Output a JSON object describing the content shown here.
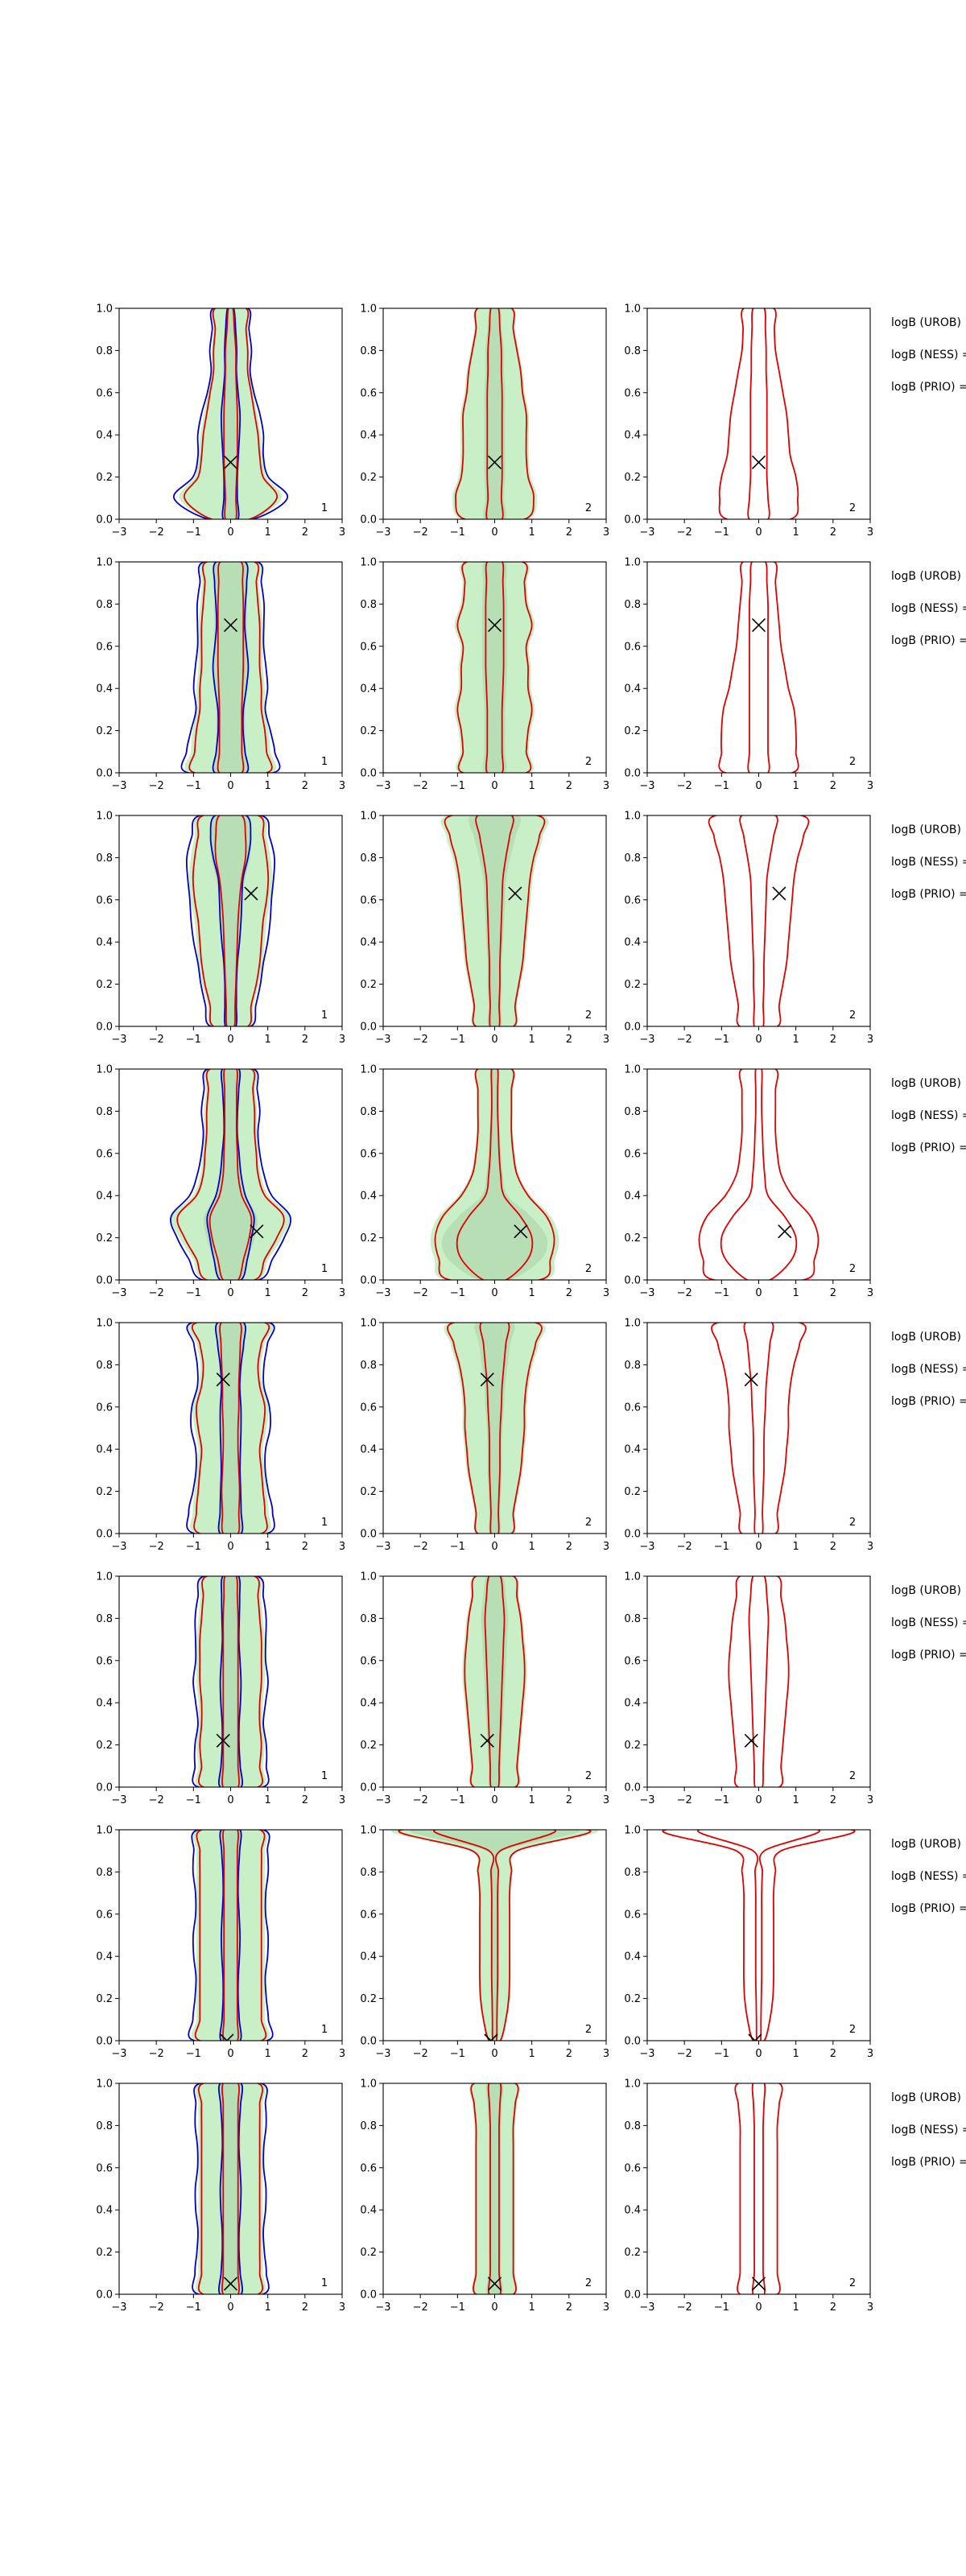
{
  "chart_data": {
    "type": "contour-grid",
    "layout": {
      "rows": 8,
      "cols": 3,
      "side_annotations": true
    },
    "axes": {
      "xlim": [
        -3,
        3
      ],
      "ylim": [
        0,
        1
      ],
      "xticks": [
        -3,
        -2,
        -1,
        0,
        1,
        2,
        3
      ],
      "yticks": [
        0.0,
        0.2,
        0.4,
        0.6,
        0.8,
        1.0
      ],
      "xtick_labels": [
        "−3",
        "−2",
        "−1",
        "0",
        "1",
        "2",
        "3"
      ],
      "ytick_labels": [
        "0.0",
        "0.2",
        "0.4",
        "0.6",
        "0.8",
        "1.0"
      ]
    },
    "colors": {
      "fill_outer": "#c8efc6",
      "fill_inner": "#b4d9b0",
      "red": "#e00000",
      "blue": "#0000cc",
      "marker": "#000000"
    },
    "panel_labels": [
      "1",
      "2",
      "2"
    ],
    "side_labels": [
      "logB (UROB)",
      "logB (NESS) =",
      "logB (PRIO) ="
    ],
    "rows": [
      {
        "marker": [
          0.0,
          0.27
        ],
        "outer_w": [
          0.55,
          1.35,
          0.95,
          0.85,
          0.8,
          0.7,
          0.6,
          0.5,
          0.5,
          0.45,
          0.45
        ],
        "inner_w": [
          0.14,
          0.14,
          0.16,
          0.18,
          0.18,
          0.18,
          0.16,
          0.14,
          0.14,
          0.1,
          0.06
        ],
        "c2_outer": [
          0.8,
          1.05,
          0.9,
          0.85,
          0.85,
          0.85,
          0.75,
          0.7,
          0.6,
          0.5,
          0.45
        ],
        "c2_inner": [
          0.2,
          0.18,
          0.2,
          0.2,
          0.2,
          0.2,
          0.2,
          0.18,
          0.18,
          0.14,
          0.1
        ],
        "c3_outer": [
          0.85,
          1.05,
          1.0,
          0.85,
          0.8,
          0.75,
          0.65,
          0.55,
          0.45,
          0.42,
          0.4
        ],
        "c3_inner": [
          0.25,
          0.25,
          0.22,
          0.22,
          0.22,
          0.22,
          0.22,
          0.2,
          0.2,
          0.18,
          0.15
        ]
      },
      {
        "marker": [
          0.0,
          0.7
        ],
        "outer_w": [
          1.05,
          1.05,
          1.0,
          0.9,
          0.9,
          0.85,
          0.85,
          0.85,
          0.8,
          0.75,
          0.7
        ],
        "inner_w": [
          0.3,
          0.3,
          0.3,
          0.3,
          0.32,
          0.34,
          0.34,
          0.34,
          0.34,
          0.32,
          0.28
        ],
        "c2_outer": [
          0.85,
          0.85,
          0.9,
          1.0,
          0.9,
          0.9,
          0.85,
          1.0,
          0.85,
          0.8,
          0.75
        ],
        "c2_inner": [
          0.2,
          0.2,
          0.2,
          0.2,
          0.22,
          0.24,
          0.24,
          0.24,
          0.24,
          0.22,
          0.2
        ],
        "c3_outer": [
          0.9,
          1.0,
          1.0,
          0.95,
          0.8,
          0.7,
          0.6,
          0.55,
          0.5,
          0.45,
          0.42
        ],
        "c3_inner": [
          0.25,
          0.25,
          0.25,
          0.25,
          0.25,
          0.25,
          0.25,
          0.25,
          0.25,
          0.22,
          0.18
        ]
      },
      {
        "marker": [
          0.55,
          0.63
        ],
        "outer_w": [
          0.5,
          0.6,
          0.75,
          0.85,
          0.9,
          0.95,
          1.05,
          1.1,
          1.05,
          0.95,
          0.8
        ],
        "inner_w": [
          0.1,
          0.12,
          0.14,
          0.16,
          0.18,
          0.2,
          0.24,
          0.3,
          0.4,
          0.4,
          0.3
        ],
        "c2_outer": [
          0.5,
          0.55,
          0.65,
          0.75,
          0.8,
          0.85,
          0.9,
          0.95,
          1.05,
          1.2,
          1.15
        ],
        "c2_inner": [
          0.12,
          0.12,
          0.14,
          0.14,
          0.16,
          0.18,
          0.2,
          0.22,
          0.3,
          0.4,
          0.45
        ],
        "c3_outer": [
          0.5,
          0.55,
          0.65,
          0.75,
          0.8,
          0.85,
          0.9,
          0.95,
          1.05,
          1.2,
          1.15
        ],
        "c3_inner": [
          0.12,
          0.12,
          0.14,
          0.14,
          0.16,
          0.18,
          0.2,
          0.22,
          0.3,
          0.4,
          0.45
        ]
      },
      {
        "marker": [
          0.7,
          0.23
        ],
        "outer_w": [
          0.7,
          1.0,
          1.35,
          1.55,
          1.0,
          0.8,
          0.75,
          0.7,
          0.7,
          0.65,
          0.6
        ],
        "inner_w": [
          0.2,
          0.35,
          0.5,
          0.55,
          0.3,
          0.2,
          0.18,
          0.16,
          0.16,
          0.16,
          0.16
        ],
        "c2_outer": [
          1.2,
          1.5,
          1.6,
          1.4,
          0.9,
          0.6,
          0.5,
          0.45,
          0.45,
          0.45,
          0.45
        ],
        "c2_inner": [
          0.3,
          0.9,
          1.0,
          0.7,
          0.25,
          0.16,
          0.12,
          0.1,
          0.08,
          0.08,
          0.08
        ],
        "c3_outer": [
          1.2,
          1.5,
          1.6,
          1.4,
          0.9,
          0.6,
          0.5,
          0.45,
          0.45,
          0.45,
          0.45
        ],
        "c3_inner": [
          0.3,
          0.9,
          1.0,
          0.7,
          0.25,
          0.16,
          0.12,
          0.1,
          0.08,
          0.08,
          0.08
        ]
      },
      {
        "marker": [
          -0.2,
          0.73
        ],
        "outer_w": [
          0.9,
          1.0,
          0.95,
          0.9,
          0.85,
          0.95,
          1.0,
          0.85,
          0.8,
          0.9,
          1.0
        ],
        "inner_w": [
          0.2,
          0.22,
          0.24,
          0.22,
          0.2,
          0.2,
          0.22,
          0.22,
          0.24,
          0.26,
          0.25
        ],
        "c2_outer": [
          0.45,
          0.5,
          0.6,
          0.7,
          0.75,
          0.8,
          0.8,
          0.85,
          0.95,
          1.1,
          1.1
        ],
        "c2_inner": [
          0.1,
          0.1,
          0.12,
          0.14,
          0.14,
          0.15,
          0.18,
          0.2,
          0.25,
          0.3,
          0.35
        ],
        "c3_outer": [
          0.45,
          0.5,
          0.6,
          0.7,
          0.75,
          0.8,
          0.8,
          0.85,
          0.95,
          1.1,
          1.1
        ],
        "c3_inner": [
          0.1,
          0.1,
          0.12,
          0.14,
          0.14,
          0.15,
          0.18,
          0.2,
          0.25,
          0.3,
          0.35
        ]
      },
      {
        "marker": [
          -0.2,
          0.22
        ],
        "outer_w": [
          0.8,
          0.85,
          0.9,
          0.85,
          0.85,
          0.9,
          0.9,
          0.9,
          0.85,
          0.8,
          0.7
        ],
        "inner_w": [
          0.2,
          0.2,
          0.2,
          0.2,
          0.2,
          0.2,
          0.2,
          0.2,
          0.2,
          0.18,
          0.15
        ],
        "c2_outer": [
          0.55,
          0.6,
          0.65,
          0.7,
          0.75,
          0.8,
          0.8,
          0.75,
          0.7,
          0.6,
          0.5
        ],
        "c2_inner": [
          0.1,
          0.12,
          0.14,
          0.16,
          0.18,
          0.2,
          0.22,
          0.24,
          0.26,
          0.22,
          0.15
        ],
        "c3_outer": [
          0.55,
          0.6,
          0.65,
          0.7,
          0.75,
          0.8,
          0.8,
          0.75,
          0.7,
          0.6,
          0.5
        ],
        "c3_inner": [
          0.1,
          0.12,
          0.14,
          0.16,
          0.18,
          0.2,
          0.22,
          0.24,
          0.26,
          0.22,
          0.15
        ]
      },
      {
        "marker": [
          -0.1,
          0.0
        ],
        "outer_w": [
          0.9,
          0.9,
          0.9,
          0.9,
          0.9,
          0.9,
          0.9,
          0.9,
          0.9,
          0.9,
          0.85
        ],
        "inner_w": [
          0.18,
          0.18,
          0.18,
          0.18,
          0.18,
          0.18,
          0.18,
          0.18,
          0.18,
          0.18,
          0.18
        ],
        "c2_outer": [
          0.15,
          0.3,
          0.38,
          0.4,
          0.4,
          0.4,
          0.4,
          0.4,
          0.45,
          0.6,
          2.5
        ],
        "c2_inner": [
          0.05,
          0.06,
          0.07,
          0.08,
          0.08,
          0.08,
          0.08,
          0.08,
          0.1,
          0.15,
          1.6
        ],
        "c3_outer": [
          0.15,
          0.3,
          0.38,
          0.4,
          0.4,
          0.4,
          0.4,
          0.4,
          0.45,
          0.6,
          2.5
        ],
        "c3_inner": [
          0.05,
          0.06,
          0.07,
          0.08,
          0.08,
          0.08,
          0.08,
          0.08,
          0.1,
          0.15,
          1.6
        ]
      },
      {
        "marker": [
          0.0,
          0.05
        ],
        "outer_w": [
          0.8,
          0.85,
          0.85,
          0.85,
          0.85,
          0.85,
          0.85,
          0.85,
          0.85,
          0.85,
          0.8
        ],
        "inner_w": [
          0.2,
          0.2,
          0.2,
          0.2,
          0.2,
          0.2,
          0.2,
          0.2,
          0.2,
          0.2,
          0.2
        ],
        "c2_outer": [
          0.5,
          0.5,
          0.5,
          0.5,
          0.5,
          0.5,
          0.5,
          0.5,
          0.5,
          0.55,
          0.55
        ],
        "c2_inner": [
          0.15,
          0.12,
          0.12,
          0.12,
          0.12,
          0.12,
          0.12,
          0.12,
          0.12,
          0.14,
          0.15
        ],
        "c3_outer": [
          0.5,
          0.5,
          0.5,
          0.5,
          0.5,
          0.5,
          0.5,
          0.5,
          0.5,
          0.55,
          0.55
        ],
        "c3_inner": [
          0.15,
          0.12,
          0.12,
          0.12,
          0.12,
          0.12,
          0.12,
          0.12,
          0.12,
          0.14,
          0.15
        ]
      }
    ]
  }
}
